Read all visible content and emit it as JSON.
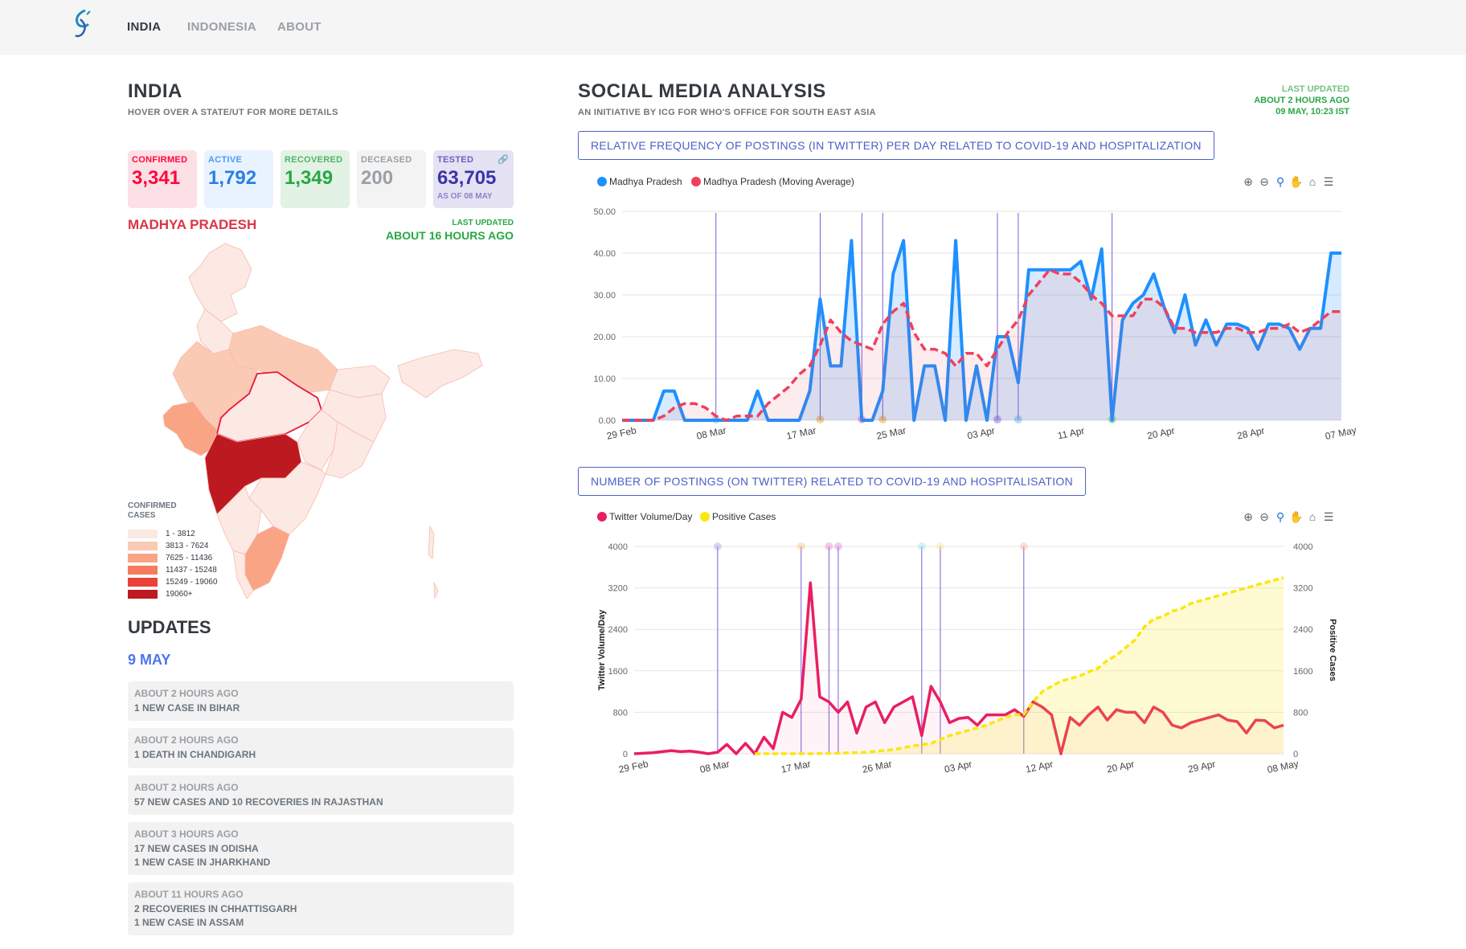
{
  "nav": {
    "items": [
      "INDIA",
      "INDONESIA",
      "ABOUT"
    ],
    "active": "INDIA"
  },
  "india": {
    "title": "INDIA",
    "subtitle": "HOVER OVER A STATE/UT FOR MORE DETAILS",
    "stats": {
      "confirmed": {
        "label": "CONFIRMED",
        "value": "3,341"
      },
      "active": {
        "label": "ACTIVE",
        "value": "1,792"
      },
      "recovered": {
        "label": "RECOVERED",
        "value": "1,349"
      },
      "deceased": {
        "label": "DECEASED",
        "value": "200"
      },
      "tested": {
        "label": "TESTED",
        "value": "63,705",
        "asof": "AS OF 08 MAY"
      }
    },
    "state": "MADHYA PRADESH",
    "last_updated_label": "LAST UPDATED",
    "last_updated_value": "ABOUT 16 HOURS AGO",
    "legend": {
      "title": "CONFIRMED CASES",
      "ranges": [
        "1 - 3812",
        "3813 - 7624",
        "7625 - 11436",
        "11437 - 15248",
        "15249 - 19060",
        "19060+"
      ],
      "colors": [
        "#fde9e3",
        "#fbcab5",
        "#f9a585",
        "#f67a5b",
        "#e9423a",
        "#bd1920"
      ]
    }
  },
  "updates": {
    "title": "UPDATES",
    "date": "9 MAY",
    "cards": [
      {
        "ago": "ABOUT 2 HOURS AGO",
        "lines": [
          "1 NEW CASE IN BIHAR"
        ]
      },
      {
        "ago": "ABOUT 2 HOURS AGO",
        "lines": [
          "1 DEATH IN CHANDIGARH"
        ]
      },
      {
        "ago": "ABOUT 2 HOURS AGO",
        "lines": [
          "57 NEW CASES AND 10 RECOVERIES IN RAJASTHAN"
        ]
      },
      {
        "ago": "ABOUT 3 HOURS AGO",
        "lines": [
          "17 NEW CASES IN ODISHA",
          "1 NEW CASE IN JHARKHAND"
        ]
      },
      {
        "ago": "ABOUT 11 HOURS AGO",
        "lines": [
          "2 RECOVERIES IN CHHATTISGARH",
          "1 NEW CASE IN ASSAM"
        ]
      }
    ]
  },
  "social": {
    "title": "SOCIAL MEDIA ANALYSIS",
    "subtitle": "AN INITIATIVE BY ICG FOR WHO'S OFFICE FOR SOUTH EAST ASIA",
    "last_updated": {
      "label": "LAST UPDATED",
      "ago": "ABOUT 2 HOURS AGO",
      "time": "09 MAY, 10:23 IST"
    }
  },
  "colors": {
    "confirmed": "#ff073a",
    "active": "#007bff",
    "recovered": "#28a745",
    "deceased": "#6c757d",
    "tested": "#201aa2",
    "chart_blue": "#1e90ff",
    "chart_red": "#f0405c",
    "chart_pink": "#e91e63",
    "chart_yellow": "#fbe70a"
  },
  "toolbar_icons": [
    "zoom-in-icon",
    "zoom-out-icon",
    "selection-zoom-icon",
    "pan-icon",
    "home-icon",
    "menu-icon"
  ],
  "chart_data": [
    {
      "type": "line",
      "title": "RELATIVE FREQUENCY OF POSTINGS (IN TWITTER) PER DAY RELATED TO COVID-19 AND HOSPITALIZATION",
      "legend": [
        "Madhya Pradesh",
        "Madhya Pradesh (Moving Average)"
      ],
      "x_ticks": [
        "29 Feb",
        "08 Mar",
        "17 Mar",
        "25 Mar",
        "03 Apr",
        "11 Apr",
        "20 Apr",
        "28 Apr",
        "07 May"
      ],
      "y_ticks": [
        "0.00",
        "10.00",
        "20.00",
        "30.00",
        "40.00",
        "50.00"
      ],
      "ylim": [
        0,
        50
      ],
      "x_range_days": [
        0,
        69
      ],
      "series": [
        {
          "name": "Madhya Pradesh",
          "days": [
            0,
            1,
            2,
            3,
            4,
            5,
            6,
            7,
            8,
            9,
            10,
            11,
            12,
            13,
            14,
            15,
            16,
            17,
            18,
            19,
            20,
            21,
            22,
            23,
            24,
            25,
            26,
            27,
            28,
            29,
            30,
            31,
            32,
            33,
            34,
            35,
            36,
            37,
            38,
            39,
            40,
            41,
            42,
            43,
            44,
            45,
            46,
            47,
            48,
            49,
            50,
            51,
            52,
            53,
            54,
            55,
            56,
            57,
            58,
            59,
            60,
            61,
            62,
            63,
            64,
            65,
            66,
            67,
            68,
            69
          ],
          "values": [
            0,
            0,
            0,
            0,
            7,
            7,
            0,
            0,
            0,
            0,
            0,
            0,
            0,
            7,
            0,
            0,
            0,
            0,
            7,
            29,
            13,
            13,
            43,
            0,
            0,
            7,
            35,
            43,
            0,
            13,
            13,
            0,
            43,
            0,
            13,
            0,
            20,
            20,
            9,
            36,
            36,
            36,
            36,
            36,
            38,
            29,
            41,
            0,
            24,
            28,
            30,
            35,
            27,
            21,
            30,
            18,
            24,
            18,
            23,
            23,
            22,
            17,
            23,
            23,
            22,
            17,
            22,
            22,
            40,
            40
          ]
        },
        {
          "name": "Madhya Pradesh (Moving Average)",
          "days": [
            0,
            1,
            2,
            3,
            4,
            5,
            6,
            7,
            8,
            9,
            10,
            11,
            12,
            13,
            14,
            15,
            16,
            17,
            18,
            19,
            20,
            21,
            22,
            23,
            24,
            25,
            26,
            27,
            28,
            29,
            30,
            31,
            32,
            33,
            34,
            35,
            36,
            37,
            38,
            39,
            40,
            41,
            42,
            43,
            44,
            45,
            46,
            47,
            48,
            49,
            50,
            51,
            52,
            53,
            54,
            55,
            56,
            57,
            58,
            59,
            60,
            61,
            62,
            63,
            64,
            65,
            66,
            67,
            68,
            69
          ],
          "values": [
            0,
            0,
            0,
            0,
            1,
            3,
            4,
            4,
            3,
            1,
            0,
            1,
            1,
            1,
            4,
            6,
            8,
            11,
            13,
            18,
            24,
            21,
            19,
            18,
            17,
            23,
            26,
            28,
            21,
            17,
            17,
            16,
            13,
            16,
            16,
            13,
            17,
            21,
            24,
            30,
            33,
            36,
            35,
            35,
            33,
            30,
            28,
            25,
            25,
            25,
            29,
            29,
            27,
            22,
            22,
            21,
            21,
            21,
            22,
            22,
            21,
            21,
            22,
            22,
            23,
            21,
            22,
            24,
            26,
            26
          ]
        }
      ],
      "event_markers_days": [
        9,
        19,
        23,
        25,
        36,
        38,
        47
      ]
    },
    {
      "type": "line",
      "title": "NUMBER OF POSTINGS (ON TWITTER) RELATED TO COVID-19 AND HOSPITALISATION",
      "legend": [
        "Twitter Volume/Day",
        "Positive Cases"
      ],
      "ylabel_left": "Twitter Volume/Day",
      "ylabel_right": "Positive Cases",
      "x_ticks": [
        "29 Feb",
        "08 Mar",
        "17 Mar",
        "26 Mar",
        "03 Apr",
        "12 Apr",
        "20 Apr",
        "29 Apr",
        "08 May"
      ],
      "y_ticks_left": [
        "0",
        "800",
        "1600",
        "2400",
        "3200",
        "4000"
      ],
      "y_ticks_right": [
        "0",
        "800",
        "1600",
        "2400",
        "3200",
        "4000"
      ],
      "ylim": [
        0,
        4000
      ],
      "x_range_days": [
        0,
        70
      ],
      "series": [
        {
          "name": "Twitter Volume/Day",
          "days": [
            0,
            2,
            4,
            5,
            6,
            7,
            8,
            9,
            10,
            11,
            12,
            13,
            14,
            15,
            16,
            17,
            18,
            19,
            20,
            21,
            22,
            23,
            24,
            25,
            26,
            27,
            28,
            29,
            30,
            31,
            32,
            33,
            34,
            35,
            36,
            37,
            38,
            39,
            40,
            41,
            42,
            43,
            44,
            45,
            46,
            47,
            48,
            49,
            50,
            51,
            52,
            53,
            54,
            55,
            56,
            57,
            58,
            59,
            60,
            61,
            62,
            63,
            64,
            65,
            66,
            67,
            68,
            69,
            70
          ],
          "values": [
            0,
            20,
            60,
            40,
            50,
            30,
            0,
            30,
            180,
            0,
            200,
            0,
            320,
            100,
            800,
            700,
            1050,
            3300,
            1100,
            1000,
            800,
            1000,
            400,
            900,
            1000,
            600,
            900,
            1000,
            1100,
            350,
            1300,
            1000,
            600,
            680,
            700,
            550,
            750,
            750,
            750,
            850,
            720,
            1000,
            900,
            750,
            0,
            700,
            550,
            750,
            900,
            650,
            850,
            800,
            800,
            600,
            900,
            800,
            550,
            500,
            600,
            650,
            700,
            750,
            650,
            620,
            400,
            650,
            640,
            500,
            550
          ]
        },
        {
          "name": "Positive Cases",
          "days": [
            13,
            16,
            19,
            22,
            25,
            28,
            30,
            32,
            34,
            36,
            38,
            40,
            41,
            42,
            43,
            44,
            45,
            46,
            47,
            48,
            49,
            50,
            51,
            52,
            53,
            54,
            55,
            56,
            57,
            58,
            59,
            60,
            62,
            64,
            66,
            68,
            70
          ],
          "values": [
            0,
            0,
            0,
            10,
            30,
            80,
            150,
            200,
            350,
            450,
            550,
            700,
            750,
            760,
            1000,
            1200,
            1300,
            1400,
            1450,
            1500,
            1580,
            1650,
            1800,
            1900,
            2050,
            2200,
            2450,
            2600,
            2650,
            2750,
            2800,
            2900,
            3000,
            3100,
            3200,
            3300,
            3400
          ]
        }
      ],
      "event_markers_days": [
        9,
        18,
        21,
        22,
        31,
        33,
        42
      ]
    }
  ]
}
